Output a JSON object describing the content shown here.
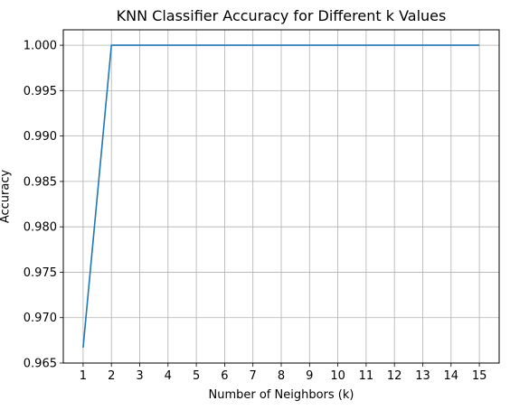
{
  "chart_data": {
    "type": "line",
    "title": "KNN Classifier Accuracy for Different k Values",
    "xlabel": "Number of Neighbors (k)",
    "ylabel": "Accuracy",
    "x": [
      1,
      2,
      3,
      4,
      5,
      6,
      7,
      8,
      9,
      10,
      11,
      12,
      13,
      14,
      15
    ],
    "series": [
      {
        "values": [
          0.9667,
          1.0,
          1.0,
          1.0,
          1.0,
          1.0,
          1.0,
          1.0,
          1.0,
          1.0,
          1.0,
          1.0,
          1.0,
          1.0,
          1.0
        ],
        "color": "#1f77b4"
      }
    ],
    "xlim": [
      0.3,
      15.7
    ],
    "ylim": [
      0.965,
      1.0017
    ],
    "xticks": [
      "1",
      "2",
      "3",
      "4",
      "5",
      "6",
      "7",
      "8",
      "9",
      "10",
      "11",
      "12",
      "13",
      "14",
      "15"
    ],
    "yticks": [
      "0.965",
      "0.970",
      "0.975",
      "0.980",
      "0.985",
      "0.990",
      "0.995",
      "1.000"
    ],
    "grid": true,
    "grid_color": "#b0b0b0",
    "legend": false
  }
}
